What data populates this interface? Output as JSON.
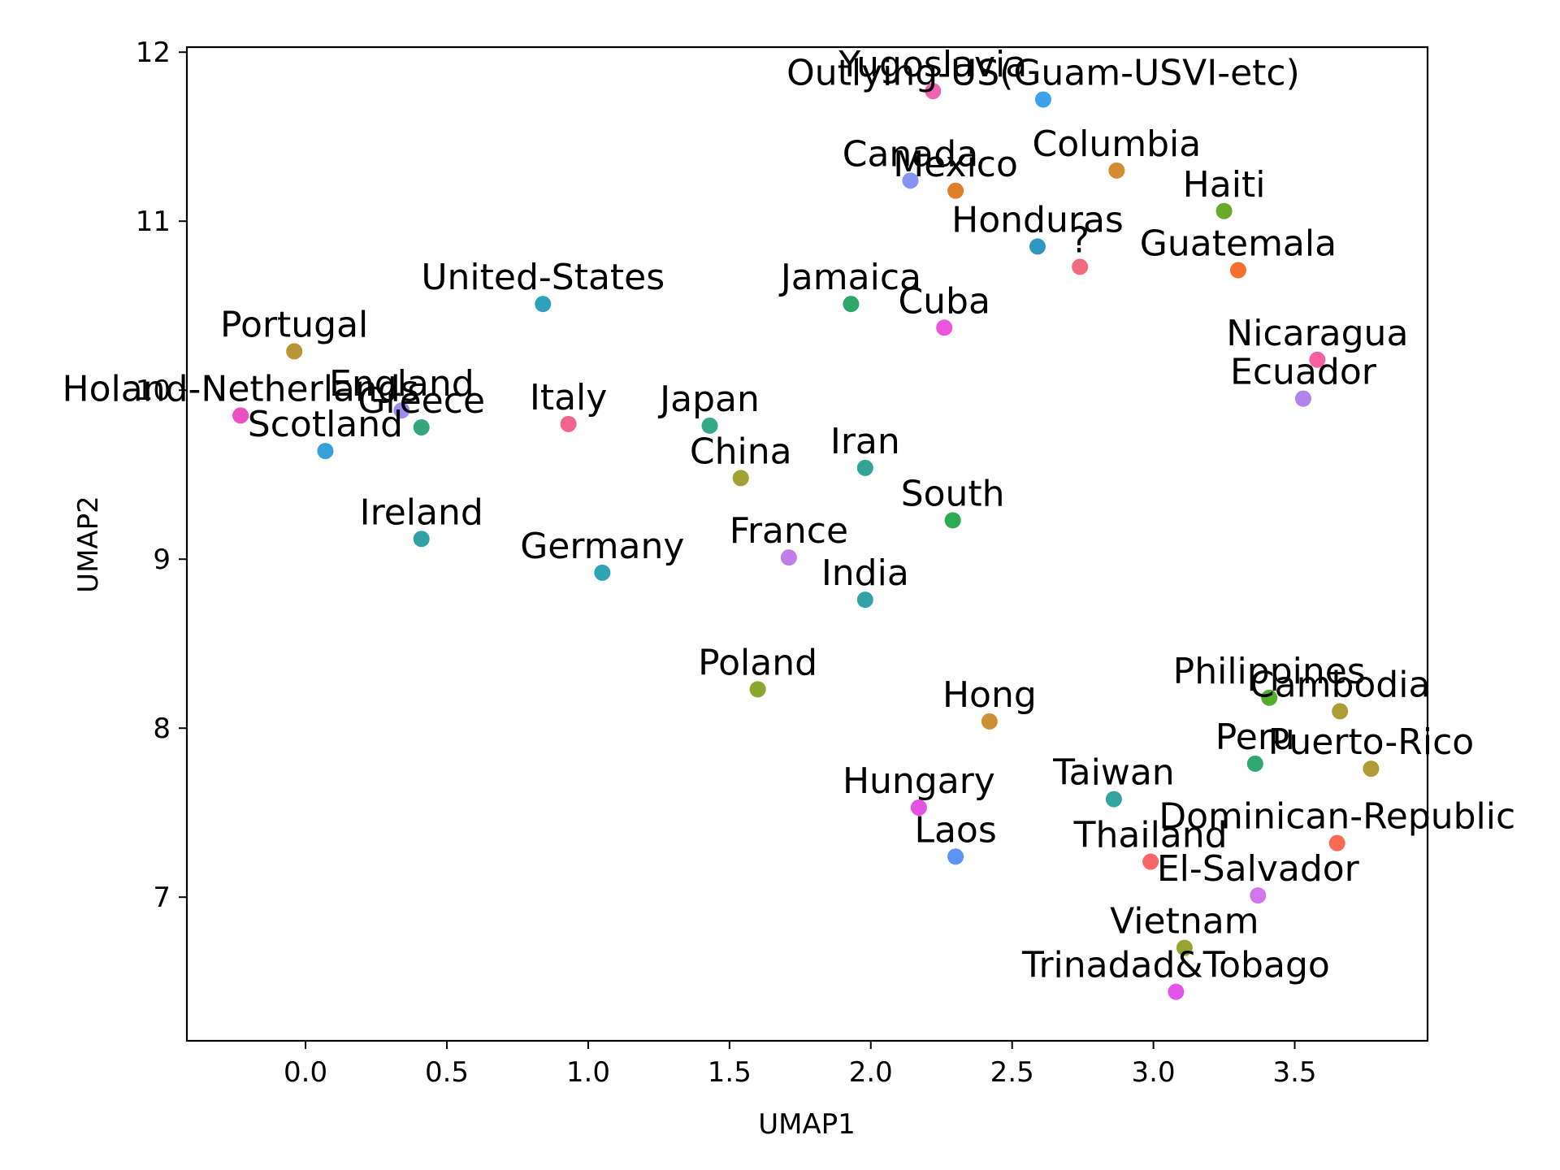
{
  "chart_data": {
    "type": "scatter",
    "title": "",
    "xlabel": "UMAP1",
    "ylabel": "UMAP2",
    "xlim": [
      -0.42,
      3.97
    ],
    "ylim": [
      6.15,
      12.03
    ],
    "xticks": [
      0.0,
      0.5,
      1.0,
      1.5,
      2.0,
      2.5,
      3.0,
      3.5
    ],
    "xtick_labels": [
      "0.0",
      "0.5",
      "1.0",
      "1.5",
      "2.0",
      "2.5",
      "3.0",
      "3.5"
    ],
    "yticks": [
      7,
      8,
      9,
      10,
      11,
      12
    ],
    "ytick_labels": [
      "7",
      "8",
      "9",
      "10",
      "11",
      "12"
    ],
    "grid": false,
    "points": [
      {
        "label": "Yugoslavia",
        "x": 2.22,
        "y": 11.77,
        "color": "#f062b4"
      },
      {
        "label": "Outlying-US(Guam-USVI-etc)",
        "x": 2.61,
        "y": 11.72,
        "color": "#3ba3ec"
      },
      {
        "label": "Columbia",
        "x": 2.87,
        "y": 11.3,
        "color": "#d58b31"
      },
      {
        "label": "Canada",
        "x": 2.14,
        "y": 11.24,
        "color": "#8295f2"
      },
      {
        "label": "Mexico",
        "x": 2.3,
        "y": 11.18,
        "color": "#e07e2c"
      },
      {
        "label": "Haiti",
        "x": 3.25,
        "y": 11.06,
        "color": "#6aaa2a"
      },
      {
        "label": "Honduras",
        "x": 2.59,
        "y": 10.85,
        "color": "#2f97c0"
      },
      {
        "label": "?",
        "x": 2.74,
        "y": 10.73,
        "color": "#f16a80"
      },
      {
        "label": "Guatemala",
        "x": 3.3,
        "y": 10.71,
        "color": "#f6702e"
      },
      {
        "label": "United-States",
        "x": 0.84,
        "y": 10.51,
        "color": "#2da2bd"
      },
      {
        "label": "Jamaica",
        "x": 1.93,
        "y": 10.51,
        "color": "#30a66a"
      },
      {
        "label": "Cuba",
        "x": 2.26,
        "y": 10.37,
        "color": "#ec55dd"
      },
      {
        "label": "Portugal",
        "x": -0.04,
        "y": 10.23,
        "color": "#b89535"
      },
      {
        "label": "Nicaragua",
        "x": 3.58,
        "y": 10.18,
        "color": "#f660a4"
      },
      {
        "label": "Ecuador",
        "x": 3.53,
        "y": 9.95,
        "color": "#b284ea"
      },
      {
        "label": "Holand-Netherlands",
        "x": -0.23,
        "y": 9.85,
        "color": "#ea4fc4"
      },
      {
        "label": "England",
        "x": 0.34,
        "y": 9.88,
        "color": "#9a8cf0"
      },
      {
        "label": "Greece",
        "x": 0.41,
        "y": 9.78,
        "color": "#34a67c"
      },
      {
        "label": "Italy",
        "x": 0.93,
        "y": 9.8,
        "color": "#f1648d"
      },
      {
        "label": "Japan",
        "x": 1.43,
        "y": 9.79,
        "color": "#34a888"
      },
      {
        "label": "Scotland",
        "x": 0.07,
        "y": 9.64,
        "color": "#36a0d8"
      },
      {
        "label": "Iran",
        "x": 1.98,
        "y": 9.54,
        "color": "#33a39a"
      },
      {
        "label": "China",
        "x": 1.54,
        "y": 9.48,
        "color": "#a1a234"
      },
      {
        "label": "South",
        "x": 2.29,
        "y": 9.23,
        "color": "#2eaa53"
      },
      {
        "label": "Ireland",
        "x": 0.41,
        "y": 9.12,
        "color": "#31a1a6"
      },
      {
        "label": "France",
        "x": 1.71,
        "y": 9.01,
        "color": "#c17de9"
      },
      {
        "label": "Germany",
        "x": 1.05,
        "y": 8.92,
        "color": "#2ea3b3"
      },
      {
        "label": "India",
        "x": 1.98,
        "y": 8.76,
        "color": "#32a2a8"
      },
      {
        "label": "Poland",
        "x": 1.6,
        "y": 8.23,
        "color": "#8aa82e"
      },
      {
        "label": "Philippines",
        "x": 3.41,
        "y": 8.18,
        "color": "#55ad2e"
      },
      {
        "label": "Cambodia",
        "x": 3.66,
        "y": 8.1,
        "color": "#ad9e33"
      },
      {
        "label": "Hong",
        "x": 2.42,
        "y": 8.04,
        "color": "#c99035"
      },
      {
        "label": "Peru",
        "x": 3.36,
        "y": 7.79,
        "color": "#2fa871"
      },
      {
        "label": "Puerto-Rico",
        "x": 3.77,
        "y": 7.76,
        "color": "#b09c36"
      },
      {
        "label": "Taiwan",
        "x": 2.86,
        "y": 7.58,
        "color": "#32a5a0"
      },
      {
        "label": "Hungary",
        "x": 2.17,
        "y": 7.53,
        "color": "#e752e6"
      },
      {
        "label": "Dominican-Republic",
        "x": 3.65,
        "y": 7.32,
        "color": "#f76a55"
      },
      {
        "label": "Laos",
        "x": 2.3,
        "y": 7.24,
        "color": "#5d94f4"
      },
      {
        "label": "Thailand",
        "x": 2.99,
        "y": 7.21,
        "color": "#f7676a"
      },
      {
        "label": "El-Salvador",
        "x": 3.37,
        "y": 7.01,
        "color": "#d077ea"
      },
      {
        "label": "Vietnam",
        "x": 3.11,
        "y": 6.7,
        "color": "#99a232"
      },
      {
        "label": "Trinadad&Tobago",
        "x": 3.08,
        "y": 6.44,
        "color": "#e454ea"
      }
    ]
  }
}
